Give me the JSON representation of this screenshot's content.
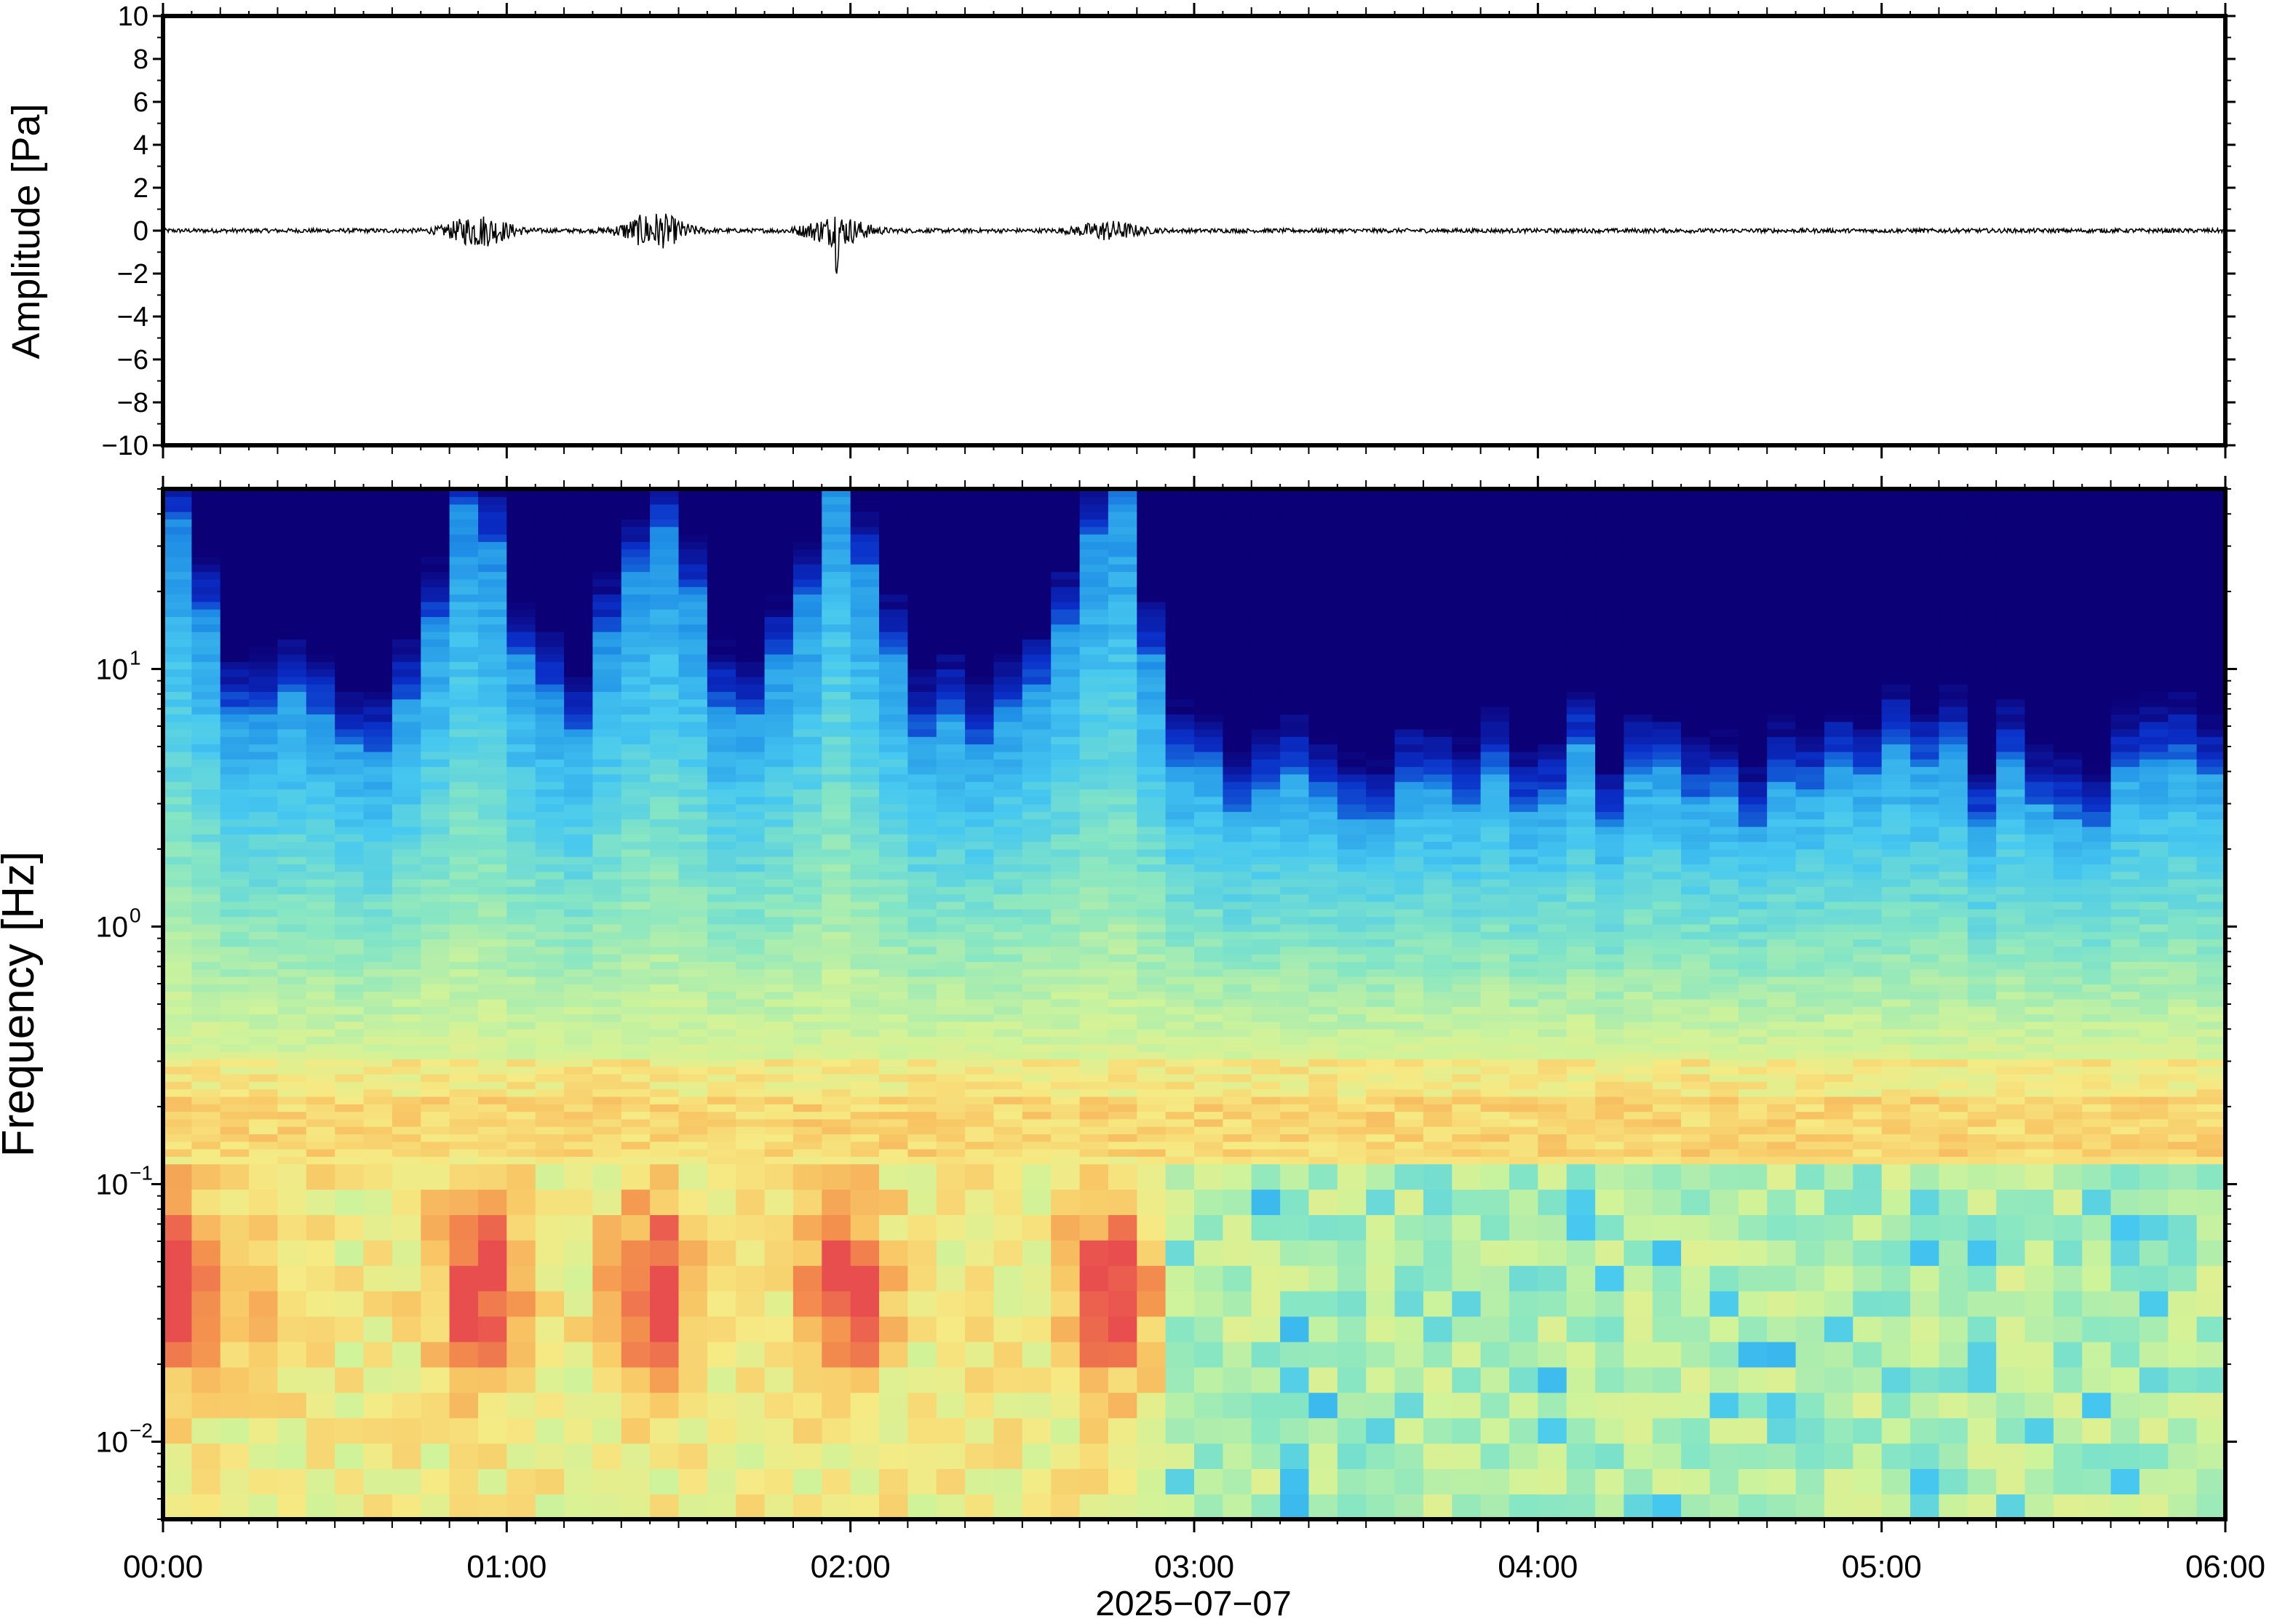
{
  "chart_data": [
    {
      "type": "line",
      "ylabel": "Amplitude [Pa]",
      "ylim": [
        -10,
        10
      ],
      "yticks": [
        "10",
        "8",
        "6",
        "4",
        "2",
        "0",
        "−2",
        "−4",
        "−6",
        "−8",
        "−10"
      ],
      "ytick_values": [
        10,
        8,
        6,
        4,
        2,
        0,
        -2,
        -4,
        -6,
        -8,
        -10
      ],
      "xlim_hours": [
        0,
        6
      ],
      "grid": false,
      "trace_color": "#000000",
      "bursts": [
        {
          "t_hours": 0.92,
          "amplitude_pa": 0.7
        },
        {
          "t_hours": 1.43,
          "amplitude_pa": 0.8
        },
        {
          "t_hours": 1.96,
          "amplitude_pa": 1.3
        },
        {
          "t_hours": 2.75,
          "amplitude_pa": 0.4
        }
      ],
      "baseline_noise_pa": 0.1
    },
    {
      "type": "heatmap",
      "ylabel": "Frequency [Hz]",
      "xlabel": "2025−07−07",
      "xticks": [
        "00:00",
        "01:00",
        "02:00",
        "03:00",
        "04:00",
        "05:00",
        "06:00"
      ],
      "xtick_hours": [
        0,
        1,
        2,
        3,
        4,
        5,
        6
      ],
      "yscale": "log",
      "ylim_hz": [
        0.005,
        50
      ],
      "yticks": [
        {
          "base": "10",
          "exp": "1",
          "value": 10
        },
        {
          "base": "10",
          "exp": "0",
          "value": 1
        },
        {
          "base": "10",
          "exp": "−1",
          "value": 0.1
        },
        {
          "base": "10",
          "exp": "−2",
          "value": 0.01
        }
      ],
      "colormap": [
        "#0b0076",
        "#0a2fc8",
        "#1f8fe6",
        "#46c8f0",
        "#86e6c4",
        "#cff39a",
        "#f6ea84",
        "#f8c866",
        "#f4934e",
        "#e84e4e"
      ],
      "microseism_band_hz": [
        0.13,
        0.3
      ],
      "high_energy_hours": [
        0.0,
        0.92,
        1.43,
        1.98,
        2.75
      ],
      "quiet_after_hours": 2.9
    }
  ]
}
